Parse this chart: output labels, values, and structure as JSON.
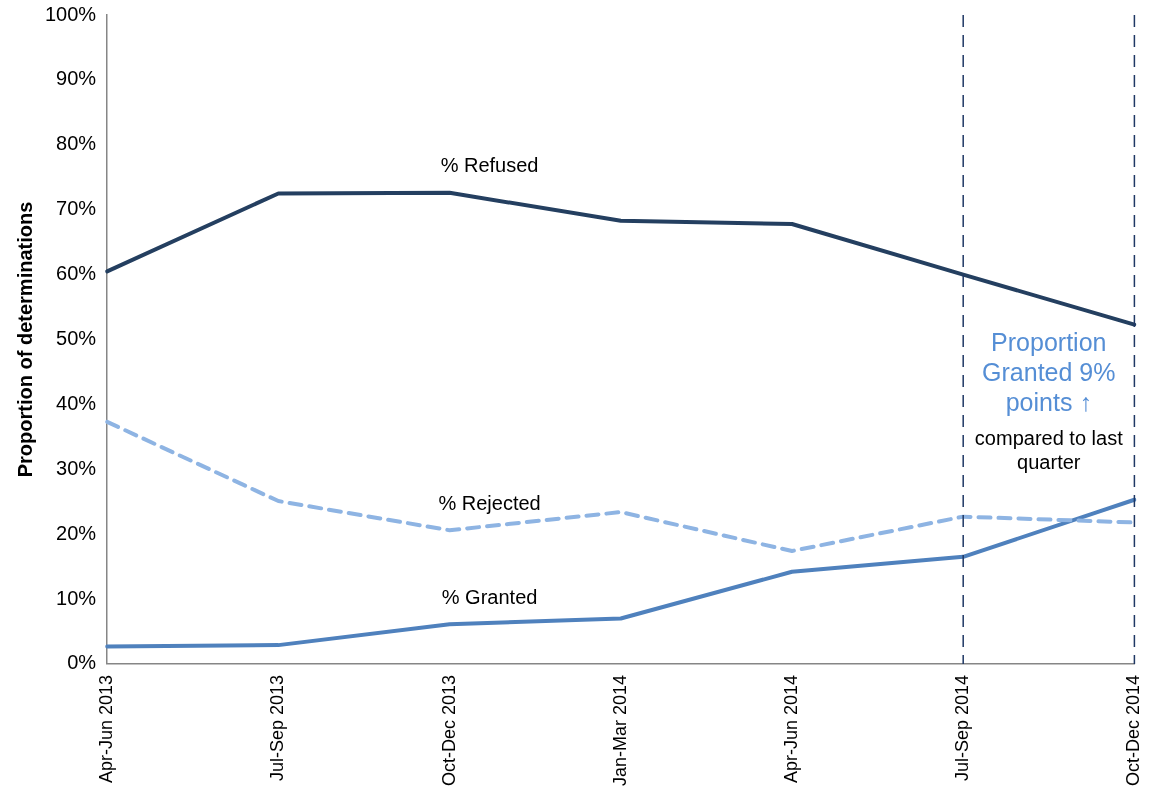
{
  "chart_data": {
    "type": "line",
    "ylabel": "Proportion of determinations",
    "categories": [
      "Apr-Jun 2013",
      "Jul-Sep 2013",
      "Oct-Dec 2013",
      "Jan-Mar 2014",
      "Apr-Jun 2014",
      "Jul-Sep 2014",
      "Oct-Dec 2014"
    ],
    "series": [
      {
        "name": "% Refused",
        "color": "#243f60",
        "values": [
          60.5,
          72.5,
          72.6,
          68.3,
          67.8,
          60,
          52.3
        ]
      },
      {
        "name": "% Rejected",
        "color": "#8eb4e3",
        "line_style": "dashed",
        "values": [
          37.3,
          25.1,
          20.6,
          23.4,
          17.4,
          22.7,
          21.8
        ]
      },
      {
        "name": "% Granted",
        "color": "#4f81bd",
        "values": [
          2.7,
          2.9,
          6.1,
          7.0,
          14.2,
          16.5,
          25.3
        ]
      }
    ],
    "ylim": [
      0,
      100
    ],
    "yticks": [
      {
        "value": 0,
        "label": "0%"
      },
      {
        "value": 10,
        "label": "10%"
      },
      {
        "value": 20,
        "label": "20%"
      },
      {
        "value": 30,
        "label": "30%"
      },
      {
        "value": 40,
        "label": "40%"
      },
      {
        "value": 50,
        "label": "50%"
      },
      {
        "value": 60,
        "label": "60%"
      },
      {
        "value": 70,
        "label": "70%"
      },
      {
        "value": 80,
        "label": "80%"
      },
      {
        "value": 90,
        "label": "90%"
      },
      {
        "value": 100,
        "label": "100%"
      }
    ],
    "ref_lines": [
      {
        "axis": "x",
        "value": "Jul-Sep 2014",
        "color": "#1f3864",
        "line_style": "dashed"
      },
      {
        "axis": "x",
        "value": "Oct-Dec 2014",
        "color": "#1f3864",
        "line_style": "dashed"
      }
    ],
    "annotations": [
      "Proportion Granted 9% points ↑",
      "compared to last quarter"
    ],
    "grid": false,
    "legend": false,
    "marker": "none"
  }
}
